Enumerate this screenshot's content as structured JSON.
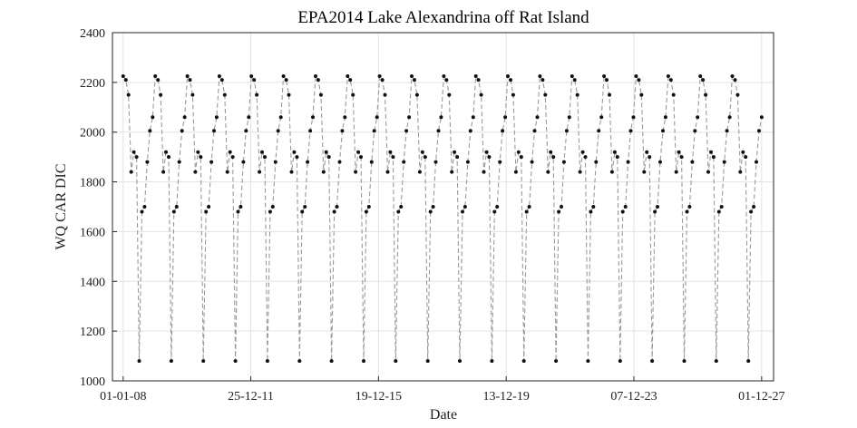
{
  "chart_data": {
    "type": "line",
    "title": "EPA2014 Lake Alexandrina off Rat Island",
    "xlabel": "Date",
    "ylabel": "WQ CAR DIC",
    "ylim": [
      1000,
      2400
    ],
    "y_ticks": [
      1000,
      1200,
      1400,
      1600,
      1800,
      2000,
      2200,
      2400
    ],
    "x_ticks": [
      {
        "date": "2008-01-01",
        "label": "01-01-08"
      },
      {
        "date": "2011-12-25",
        "label": "25-12-11"
      },
      {
        "date": "2015-12-19",
        "label": "19-12-15"
      },
      {
        "date": "2019-12-13",
        "label": "13-12-19"
      },
      {
        "date": "2023-12-07",
        "label": "07-12-23"
      },
      {
        "date": "2027-12-01",
        "label": "01-12-27"
      }
    ],
    "xlim": [
      "2007-09-01",
      "2028-04-15"
    ],
    "grid": true,
    "line_style": "dashed",
    "line_color": "#9a9a9a",
    "marker_color": "#111111",
    "series": [
      {
        "period_start_dates": [
          "2008-01-01",
          "2009-01-01",
          "2010-01-01",
          "2011-01-01",
          "2012-01-01",
          "2013-01-01",
          "2014-01-01",
          "2015-01-01",
          "2016-01-01",
          "2017-01-01",
          "2018-01-01",
          "2019-01-01",
          "2020-01-01",
          "2021-01-01",
          "2022-01-01",
          "2023-01-01",
          "2024-01-01",
          "2025-01-01",
          "2026-01-01",
          "2027-01-01"
        ],
        "monthly_pattern": [
          2225,
          2210,
          2150,
          1840,
          1920,
          1900,
          1080,
          1680,
          1700,
          1880,
          2005,
          2060
        ],
        "last_period_months": 12
      }
    ]
  }
}
